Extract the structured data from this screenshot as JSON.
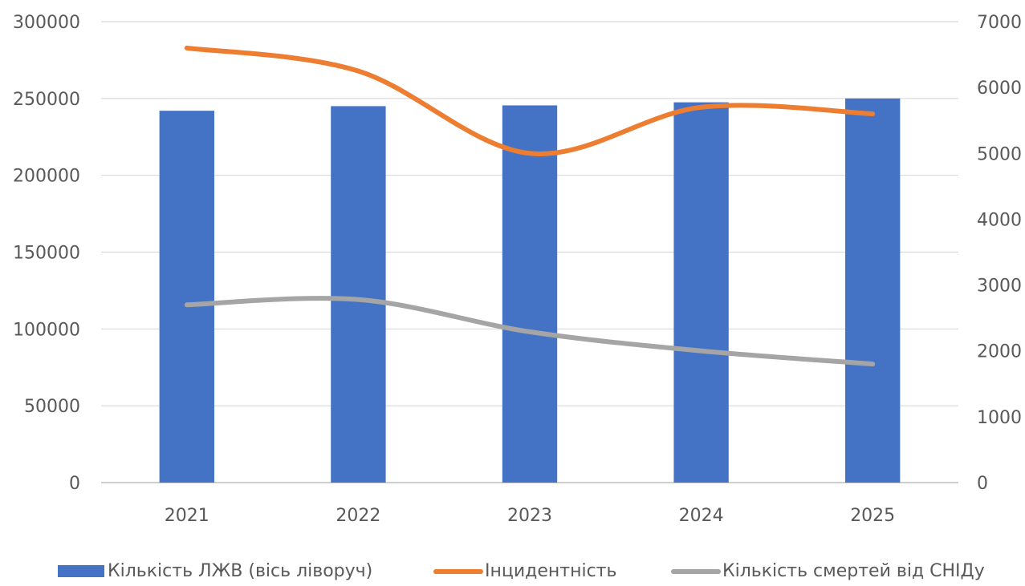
{
  "chart_data": {
    "type": "bar",
    "categories": [
      "2021",
      "2022",
      "2023",
      "2024",
      "2025"
    ],
    "series": [
      {
        "name": "Кількість ЛЖВ (вісь ліворуч)",
        "type": "bar",
        "axis": "left",
        "color": "#4472C4",
        "values": [
          242000,
          245000,
          245500,
          247500,
          250000
        ]
      },
      {
        "name": "Інцидентність",
        "type": "line",
        "axis": "right",
        "smooth": true,
        "color": "#ED7D31",
        "values": [
          6600,
          6250,
          5000,
          5700,
          5600
        ]
      },
      {
        "name": "Кількість смертей від СНІДу",
        "type": "line",
        "axis": "right",
        "smooth": true,
        "color": "#A5A5A5",
        "values": [
          2700,
          2780,
          2290,
          2000,
          1800
        ]
      }
    ],
    "y_left": {
      "min": 0,
      "max": 300000,
      "ticks": [
        "0",
        "50000",
        "100000",
        "150000",
        "200000",
        "250000",
        "300000"
      ]
    },
    "y_right": {
      "min": 0,
      "max": 7000,
      "ticks": [
        "0",
        "1000",
        "2000",
        "3000",
        "4000",
        "5000",
        "6000",
        "7000"
      ]
    },
    "grid": true,
    "legend": "bottom"
  }
}
